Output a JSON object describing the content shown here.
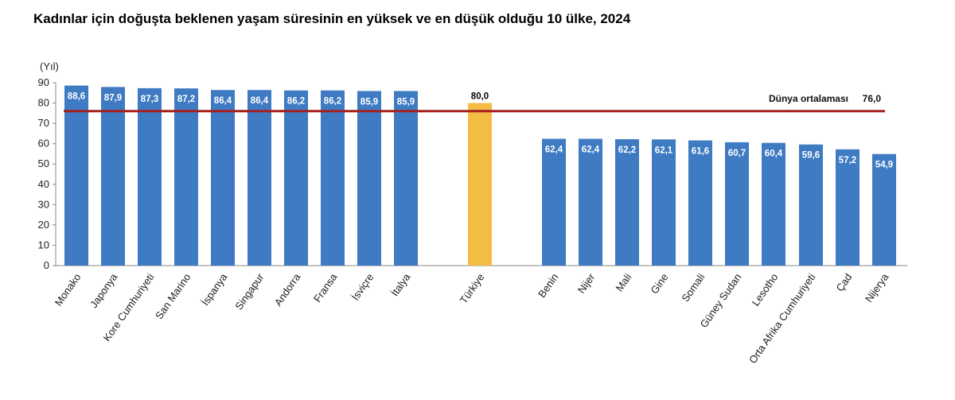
{
  "chart_data": {
    "type": "bar",
    "title": "Kadınlar için doğuşta beklenen yaşam süresinin en yüksek ve en düşük olduğu 10 ülke, 2024",
    "ylabel": "(Yıl)",
    "xlabel": "",
    "ylim": [
      0,
      90
    ],
    "yticks": [
      "0",
      "10",
      "20",
      "30",
      "40",
      "50",
      "60",
      "70",
      "80",
      "90"
    ],
    "grid": false,
    "categories": [
      "Monako",
      "Japonya",
      "Kore Cumhuriyeti",
      "San Marino",
      "İspanya",
      "Singapur",
      "Andorra",
      "Fransa",
      "İsviçre",
      "İtalya",
      "Türkiye",
      "Benin",
      "Nijer",
      "Mali",
      "Gine",
      "Somali",
      "Güney Sudan",
      "Lesotho",
      "Orta Afrika Cumhuriyeti",
      "Çad",
      "Nijerya"
    ],
    "values": [
      88.6,
      87.9,
      87.3,
      87.2,
      86.4,
      86.4,
      86.2,
      86.2,
      85.9,
      85.9,
      80.0,
      62.4,
      62.4,
      62.2,
      62.1,
      61.6,
      60.7,
      60.4,
      59.6,
      57.2,
      54.9
    ],
    "value_labels": [
      "88,6",
      "87,9",
      "87,3",
      "87,2",
      "86,4",
      "86,4",
      "86,2",
      "86,2",
      "85,9",
      "85,9",
      "80,0",
      "62,4",
      "62,4",
      "62,2",
      "62,1",
      "61,6",
      "60,7",
      "60,4",
      "59,6",
      "57,2",
      "54,9"
    ],
    "highlight_index": 10,
    "reference_line": {
      "label": "Dünya ortalaması",
      "value": 76.0,
      "value_label": "76,0"
    },
    "colors": {
      "bar": "#3f7bc2",
      "highlight": "#f2bc45",
      "reference": "#a3201f",
      "label_on_bar": "#ffffff",
      "label_highlight": "#000000"
    }
  }
}
